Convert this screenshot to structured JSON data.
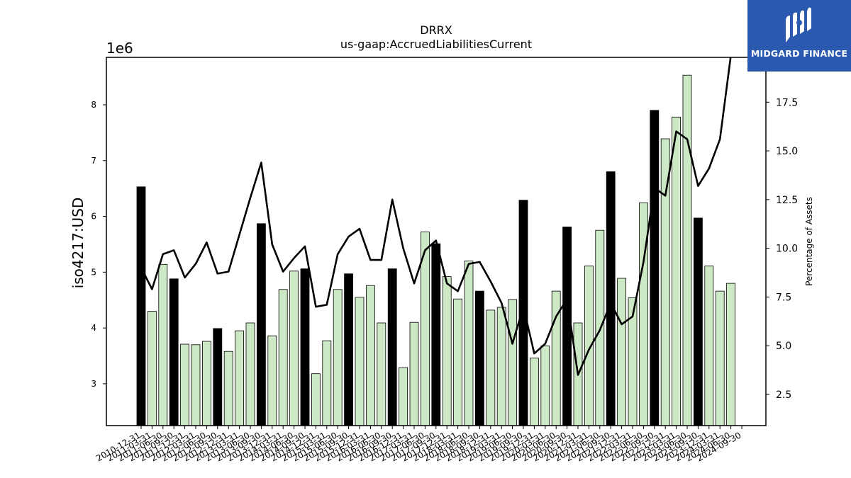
{
  "chart_data": {
    "type": "bar",
    "title": "DRRX",
    "subtitle": "us-gaap:AccruedLiabilitiesCurrent",
    "ylabel": "iso4217:USD",
    "y_scale_label": "1e6",
    "y2label": "Percentage of Assets",
    "ylim": [
      2.25,
      8.85
    ],
    "y2lim": [
      0.9,
      19.8
    ],
    "yticks": [
      "3",
      "4",
      "5",
      "6",
      "7",
      "8"
    ],
    "y2ticks": [
      "2.5",
      "5.0",
      "7.5",
      "10.0",
      "12.5",
      "15.0",
      "17.5"
    ],
    "grid": false,
    "colors": {
      "annual_bar": "#000000",
      "quarter_bar": "#cce8c4",
      "line": "#000000"
    },
    "categories": [
      "2010-12-31",
      "2011-03-31",
      "2011-06-30",
      "2011-09-30",
      "2011-12-31",
      "2012-03-31",
      "2012-06-30",
      "2012-09-30",
      "2012-12-31",
      "2013-03-31",
      "2013-06-30",
      "2013-09-30",
      "2013-12-31",
      "2014-03-31",
      "2014-06-30",
      "2014-09-30",
      "2014-12-31",
      "2015-03-31",
      "2015-06-30",
      "2015-09-30",
      "2015-12-31",
      "2016-03-31",
      "2016-06-30",
      "2016-09-30",
      "2016-12-31",
      "2017-03-31",
      "2017-06-30",
      "2017-09-30",
      "2017-12-31",
      "2018-03-31",
      "2018-06-30",
      "2018-09-30",
      "2018-12-31",
      "2019-03-31",
      "2019-06-30",
      "2019-09-30",
      "2019-12-31",
      "2020-03-31",
      "2020-06-30",
      "2020-09-30",
      "2020-12-31",
      "2021-03-31",
      "2021-06-30",
      "2021-09-30",
      "2021-12-31",
      "2022-03-31",
      "2022-06-30",
      "2022-09-30",
      "2022-12-31",
      "2023-03-31",
      "2023-06-30",
      "2023-09-30",
      "2023-12-31",
      "2024-03-31",
      "2024-06-30",
      "2024-09-30"
    ],
    "bar_kind": [
      "annual",
      "quarter",
      "quarter",
      "annual",
      "quarter",
      "quarter",
      "quarter",
      "annual",
      "quarter",
      "quarter",
      "quarter",
      "annual",
      "quarter",
      "quarter",
      "quarter",
      "annual",
      "quarter",
      "quarter",
      "quarter",
      "annual",
      "quarter",
      "quarter",
      "quarter",
      "annual",
      "quarter",
      "quarter",
      "quarter",
      "annual",
      "quarter",
      "quarter",
      "quarter",
      "annual",
      "quarter",
      "quarter",
      "quarter",
      "annual",
      "quarter",
      "quarter",
      "quarter",
      "annual",
      "quarter",
      "quarter",
      "quarter",
      "annual",
      "quarter",
      "quarter",
      "quarter",
      "annual",
      "quarter",
      "quarter",
      "quarter",
      "annual",
      "quarter",
      "quarter",
      "quarter",
      "quarter"
    ],
    "values": [
      6.53,
      4.3,
      5.14,
      4.88,
      3.71,
      3.7,
      3.76,
      3.99,
      3.58,
      3.95,
      4.09,
      5.87,
      3.86,
      4.69,
      5.02,
      5.06,
      3.18,
      3.77,
      4.69,
      4.97,
      4.55,
      4.76,
      4.09,
      5.06,
      3.29,
      4.1,
      5.72,
      5.51,
      4.92,
      4.52,
      5.2,
      4.66,
      4.32,
      4.37,
      4.51,
      6.29,
      3.46,
      3.68,
      4.66,
      5.81,
      4.09,
      5.11,
      5.75,
      6.8,
      4.89,
      4.54,
      6.24,
      7.9,
      7.39,
      7.78,
      8.53,
      5.97,
      5.11,
      4.66,
      4.8,
      null
    ],
    "series": [
      {
        "values": [
          9.0,
          7.9,
          9.7,
          9.9,
          8.5,
          9.2,
          10.3,
          8.7,
          8.8,
          10.7,
          12.6,
          14.4,
          10.2,
          8.8,
          9.5,
          10.1,
          7.0,
          7.1,
          9.7,
          10.6,
          11.0,
          9.4,
          9.4,
          12.5,
          10.0,
          8.2,
          9.9,
          10.4,
          8.2,
          7.8,
          9.2,
          9.3,
          8.3,
          7.2,
          5.1,
          7.0,
          4.6,
          5.1,
          6.5,
          7.4,
          3.5,
          4.8,
          5.8,
          7.2,
          6.1,
          6.5,
          9.3,
          13.1,
          12.7,
          16.0,
          15.6,
          13.2,
          14.1,
          15.6,
          19.9,
          null
        ]
      }
    ]
  },
  "brand": {
    "name": "MIDGARD FINANCE",
    "logo_icon": "midgard-m-icon",
    "background": "#2b59b0"
  }
}
